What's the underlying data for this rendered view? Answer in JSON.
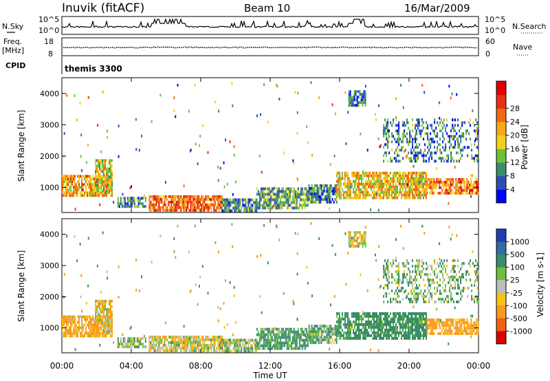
{
  "header": {
    "station": "Inuvik (fitACF)",
    "beam": "Beam 10",
    "date": "16/Mar/2009"
  },
  "noise_panel": {
    "left_label": "N.Sky",
    "left_ticks": [
      "10^5",
      "10^0"
    ],
    "right_label": "N.Search",
    "right_ticks": [
      "10^5",
      "10^0"
    ]
  },
  "freq_panel": {
    "left_label_1": "Freq.",
    "left_label_2": "[MHz]",
    "left_ticks": [
      "18",
      "8"
    ],
    "right_label": "Nave",
    "right_ticks": [
      "60",
      "0"
    ]
  },
  "cpid": {
    "label": "CPID",
    "mode": "themis 3300"
  },
  "x_axis": {
    "title": "Time UT",
    "ticks": [
      "00:00",
      "04:00",
      "08:00",
      "12:00",
      "16:00",
      "20:00",
      "00:00"
    ]
  },
  "chart_data": [
    {
      "type": "heatmap",
      "name": "power",
      "ylabel": "Slant Range [km]",
      "yticks": [
        1000,
        2000,
        3000,
        4000
      ],
      "ylim": [
        200,
        4500
      ],
      "xlim": [
        0,
        24
      ],
      "colorbar": {
        "label": "Power [dB]",
        "ticks": [
          "4",
          "8",
          "12",
          "16",
          "20",
          "24",
          "28"
        ],
        "colors": [
          "#0000ff",
          "#2a4fb4",
          "#3a8c6b",
          "#6fbf3a",
          "#f0d21e",
          "#f7a81a",
          "#f06a10",
          "#e83010",
          "#e00000"
        ]
      },
      "regions": [
        {
          "t0": 0.0,
          "t1": 2.9,
          "r0": 700,
          "r1": 1400,
          "value": 22
        },
        {
          "t0": 1.9,
          "t1": 2.9,
          "r0": 900,
          "r1": 1900,
          "value": 18
        },
        {
          "t0": 3.2,
          "t1": 4.8,
          "r0": 350,
          "r1": 700,
          "value": 10
        },
        {
          "t0": 5.0,
          "t1": 9.2,
          "r0": 250,
          "r1": 750,
          "value": 27
        },
        {
          "t0": 9.2,
          "t1": 11.2,
          "r0": 250,
          "r1": 650,
          "value": 10
        },
        {
          "t0": 11.2,
          "t1": 14.2,
          "r0": 350,
          "r1": 1000,
          "value": 12
        },
        {
          "t0": 14.2,
          "t1": 15.8,
          "r0": 500,
          "r1": 1100,
          "value": 9
        },
        {
          "t0": 15.8,
          "t1": 21.0,
          "r0": 700,
          "r1": 1500,
          "value": 20
        },
        {
          "t0": 21.0,
          "t1": 24.0,
          "r0": 800,
          "r1": 1300,
          "value": 25
        },
        {
          "t0": 18.5,
          "t1": 24.0,
          "r0": 1800,
          "r1": 3200,
          "value": 9
        },
        {
          "t0": 16.5,
          "t1": 17.5,
          "r0": 3600,
          "r1": 4100,
          "value": 8
        }
      ]
    },
    {
      "type": "heatmap",
      "name": "velocity",
      "ylabel": "Slant Range [km]",
      "yticks": [
        1000,
        2000,
        3000,
        4000
      ],
      "ylim": [
        200,
        4500
      ],
      "xlim": [
        0,
        24
      ],
      "colorbar": {
        "label": "Velocity [m s-1]",
        "ticks": [
          "1000",
          "500",
          "100",
          "25",
          "-25",
          "-100",
          "-500",
          "-1000"
        ],
        "colors": [
          "#1e3cb4",
          "#2f6ea0",
          "#3a8c6b",
          "#6fbf3a",
          "#bdbdbd",
          "#f7c21a",
          "#f79a1a",
          "#f06010",
          "#e00000"
        ]
      },
      "regions": [
        {
          "t0": 0.0,
          "t1": 2.9,
          "r0": 700,
          "r1": 1400,
          "value": -150
        },
        {
          "t0": 1.9,
          "t1": 2.9,
          "r0": 900,
          "r1": 1900,
          "value": -60
        },
        {
          "t0": 3.2,
          "t1": 4.8,
          "r0": 350,
          "r1": 700,
          "value": 60
        },
        {
          "t0": 5.0,
          "t1": 9.2,
          "r0": 250,
          "r1": 750,
          "value": -20
        },
        {
          "t0": 9.2,
          "t1": 11.2,
          "r0": 250,
          "r1": 650,
          "value": 50
        },
        {
          "t0": 11.2,
          "t1": 14.2,
          "r0": 350,
          "r1": 1000,
          "value": 150
        },
        {
          "t0": 14.2,
          "t1": 15.8,
          "r0": 500,
          "r1": 1100,
          "value": 100
        },
        {
          "t0": 15.8,
          "t1": 21.0,
          "r0": 700,
          "r1": 1500,
          "value": 200
        },
        {
          "t0": 21.0,
          "t1": 24.0,
          "r0": 800,
          "r1": 1300,
          "value": -200
        },
        {
          "t0": 18.5,
          "t1": 24.0,
          "r0": 1800,
          "r1": 3200,
          "value": 80
        },
        {
          "t0": 16.5,
          "t1": 17.5,
          "r0": 3600,
          "r1": 4100,
          "value": -40
        }
      ]
    }
  ]
}
